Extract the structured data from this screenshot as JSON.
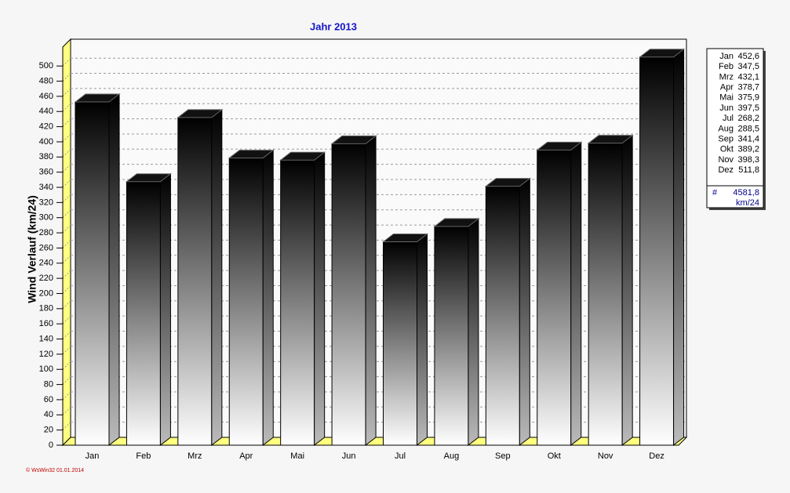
{
  "chart_data": {
    "type": "bar",
    "title": "Jahr  2013",
    "y_label": "Wind Verlauf  (km/24)",
    "categories": [
      "Jan",
      "Feb",
      "Mrz",
      "Apr",
      "Mai",
      "Jun",
      "Jul",
      "Aug",
      "Sep",
      "Okt",
      "Nov",
      "Dez"
    ],
    "values": [
      452.6,
      347.5,
      432.1,
      378.7,
      375.9,
      397.5,
      268.2,
      288.5,
      341.4,
      389.2,
      398.3,
      511.8
    ],
    "value_labels": [
      "452,6",
      "347,5",
      "432,1",
      "378,7",
      "375,9",
      "397,5",
      "268,2",
      "288,5",
      "341,4",
      "389,2",
      "398,3",
      "511,8"
    ],
    "total": {
      "value": 4581.8,
      "label": "4581,8"
    },
    "total_symbol": "#",
    "unit": "km/24",
    "ylim": [
      0,
      525
    ],
    "yticks": [
      0,
      20,
      40,
      60,
      80,
      100,
      120,
      140,
      160,
      180,
      200,
      220,
      240,
      260,
      280,
      300,
      320,
      340,
      360,
      380,
      400,
      420,
      440,
      460,
      480,
      500
    ],
    "grid": true,
    "footer": "© WsWin32  01.01.2014"
  }
}
